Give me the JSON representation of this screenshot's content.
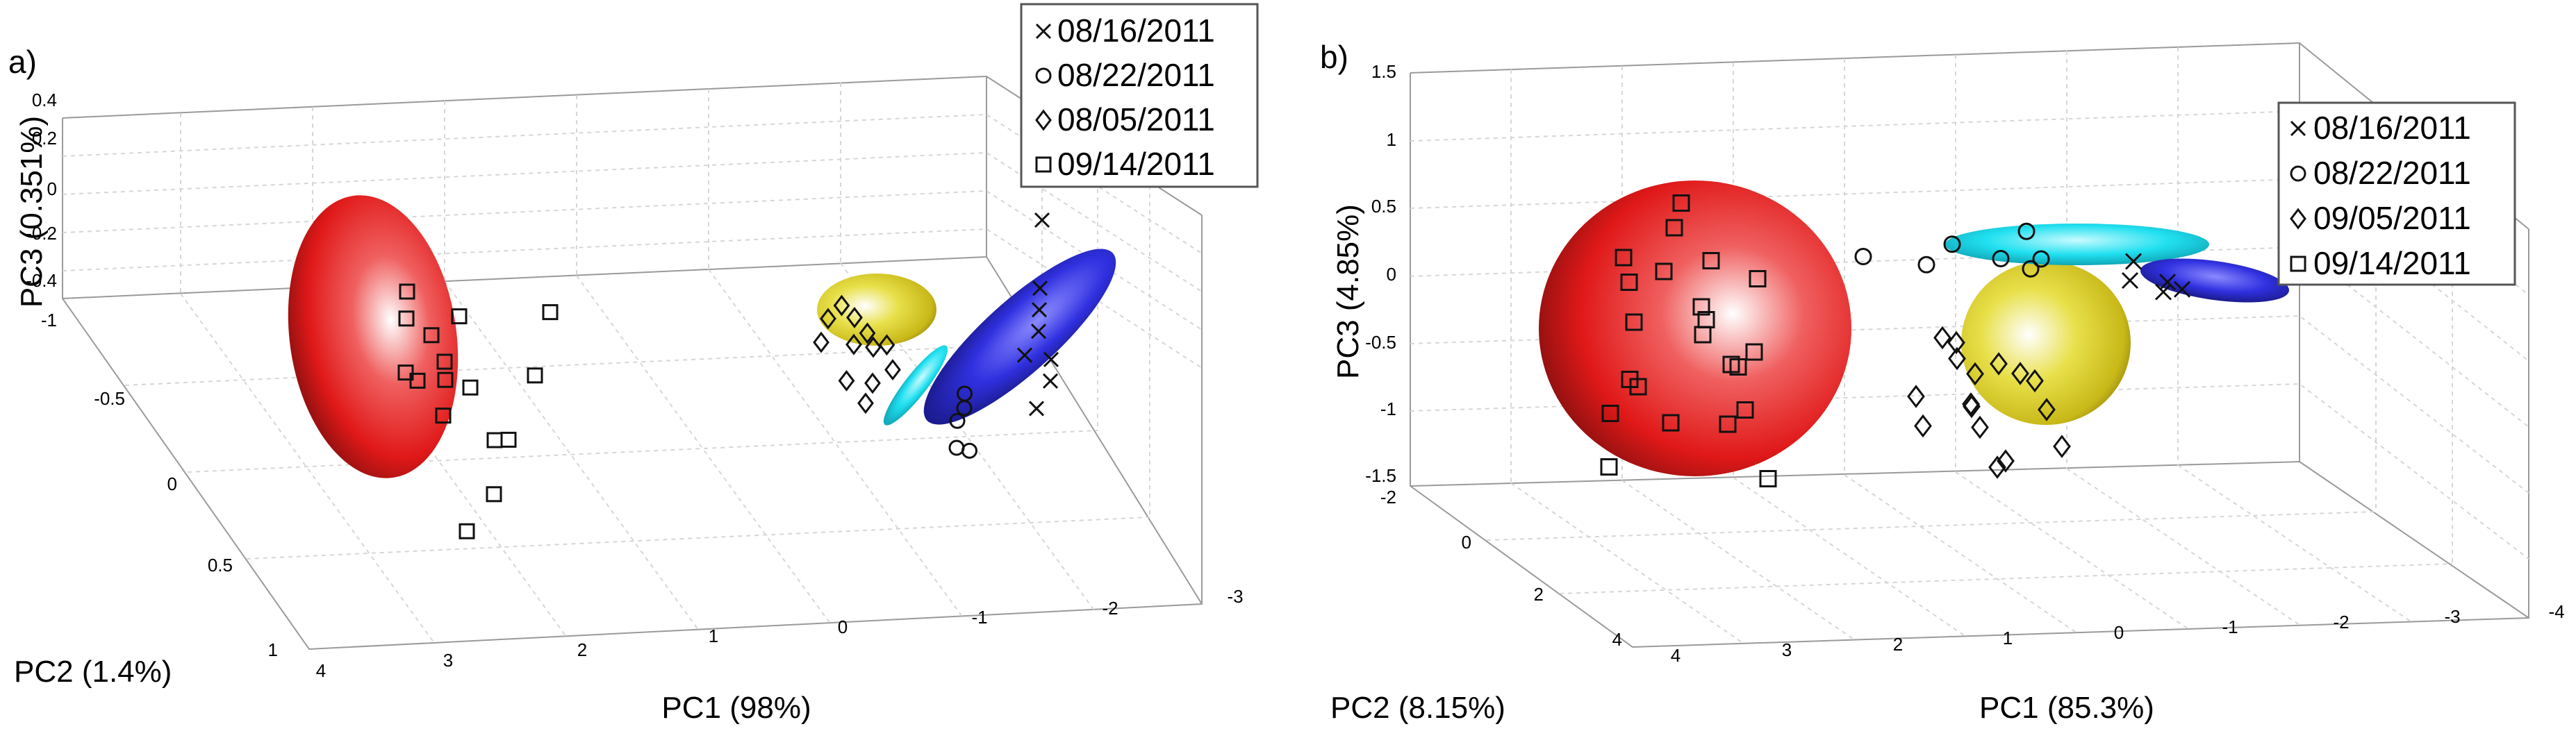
{
  "chart_data": [
    {
      "type": "scatter",
      "panel_label": "a)",
      "xlabel": "PC1 (98%)",
      "ylabel": "PC2 (1.4%)",
      "zlabel": "PC3 (0.351%)",
      "x_ticks": [
        "4",
        "3",
        "2",
        "1",
        "0",
        "-1",
        "-2",
        "-3"
      ],
      "y_ticks": [
        "-1",
        "-0.5",
        "0",
        "0.5",
        "1"
      ],
      "z_ticks": [
        "0.4",
        "0.2",
        "0",
        "-0.2",
        "-0.4"
      ],
      "legend": [
        "08/16/2011",
        "08/22/2011",
        "08/05/2011",
        "09/14/2011"
      ],
      "series": [
        {
          "name": "08/16/2011",
          "marker": "x",
          "ellipsoid_color": "#2a2ad6",
          "points": [
            [
              -1.3,
              0.1,
              0.05
            ],
            [
              -1.5,
              0.0,
              0.08
            ],
            [
              -1.6,
              -0.1,
              0.1
            ],
            [
              -1.4,
              0.2,
              0.0
            ],
            [
              -1.7,
              -0.2,
              0.12
            ],
            [
              -1.2,
              0.3,
              -0.05
            ],
            [
              -2.0,
              -0.5,
              0.2
            ],
            [
              -1.5,
              0.1,
              0.02
            ]
          ]
        },
        {
          "name": "08/22/2011",
          "marker": "o",
          "ellipsoid_color": "#22d6e6",
          "points": [
            [
              -0.6,
              0.3,
              -0.1
            ],
            [
              -0.7,
              0.25,
              -0.08
            ],
            [
              -0.5,
              0.4,
              -0.15
            ],
            [
              -0.55,
              0.45,
              -0.12
            ],
            [
              -0.75,
              0.2,
              -0.05
            ]
          ]
        },
        {
          "name": "08/05/2011",
          "marker": "d",
          "ellipsoid_color": "#d4c92a",
          "points": [
            [
              0.0,
              -0.1,
              0.1
            ],
            [
              -0.1,
              0.0,
              0.05
            ],
            [
              -0.2,
              0.05,
              0.08
            ],
            [
              0.1,
              -0.05,
              0.02
            ],
            [
              -0.3,
              0.1,
              0.0
            ],
            [
              -0.15,
              -0.15,
              0.12
            ],
            [
              0.05,
              0.1,
              -0.05
            ],
            [
              -0.25,
              -0.05,
              0.06
            ],
            [
              -0.1,
              0.15,
              -0.02
            ],
            [
              -0.35,
              0.0,
              0.04
            ],
            [
              0.0,
              0.2,
              -0.08
            ],
            [
              -0.2,
              -0.1,
              0.1
            ]
          ]
        },
        {
          "name": "09/14/2011",
          "marker": "s",
          "ellipsoid_color": "#e02020",
          "points": [
            [
              3.0,
              0.0,
              0.05
            ],
            [
              3.1,
              -0.2,
              0.1
            ],
            [
              2.9,
              0.1,
              0.0
            ],
            [
              3.2,
              0.2,
              -0.05
            ],
            [
              3.0,
              -0.3,
              0.15
            ],
            [
              2.8,
              0.3,
              -0.1
            ],
            [
              3.1,
              0.0,
              0.2
            ],
            [
              2.9,
              -0.1,
              -0.15
            ],
            [
              3.3,
              0.1,
              0.05
            ],
            [
              3.0,
              0.4,
              0.0
            ],
            [
              2.7,
              -0.2,
              0.1
            ],
            [
              3.2,
              -0.1,
              -0.1
            ],
            [
              2.6,
              0.3,
              0.25
            ],
            [
              3.1,
              0.5,
              -0.2
            ],
            [
              2.2,
              0.0,
              0.3
            ],
            [
              3.4,
              0.6,
              -0.3
            ]
          ]
        }
      ]
    },
    {
      "type": "scatter",
      "panel_label": "b)",
      "xlabel": "PC1 (85.3%)",
      "ylabel": "PC2 (8.15%)",
      "zlabel": "PC3 (4.85%)",
      "x_ticks": [
        "4",
        "3",
        "2",
        "1",
        "0",
        "-1",
        "-2",
        "-3",
        "-4"
      ],
      "y_ticks": [
        "-2",
        "0",
        "2",
        "4"
      ],
      "z_ticks": [
        "1.5",
        "1",
        "0.5",
        "0",
        "-0.5",
        "-1",
        "-1.5"
      ],
      "legend": [
        "08/16/2011",
        "08/22/2011",
        "09/05/2011",
        "09/14/2011"
      ],
      "series": [
        {
          "name": "08/16/2011",
          "marker": "x",
          "ellipsoid_color": "#2a2ad6",
          "points": [
            [
              -1.6,
              0.0,
              0.0
            ],
            [
              -1.8,
              0.2,
              0.05
            ],
            [
              -2.0,
              0.1,
              -0.05
            ],
            [
              -1.7,
              -0.1,
              0.1
            ],
            [
              -1.9,
              0.0,
              -0.1
            ]
          ]
        },
        {
          "name": "08/22/2011",
          "marker": "o",
          "ellipsoid_color": "#22d6e6",
          "points": [
            [
              0.8,
              0.0,
              0.3
            ],
            [
              0.3,
              0.1,
              0.25
            ],
            [
              0.0,
              0.0,
              0.35
            ],
            [
              -0.3,
              0.2,
              0.3
            ],
            [
              -0.6,
              0.1,
              0.45
            ],
            [
              -0.8,
              0.0,
              0.2
            ],
            [
              -0.5,
              0.3,
              0.25
            ]
          ]
        },
        {
          "name": "09/05/2011",
          "marker": "d",
          "ellipsoid_color": "#d4c92a",
          "points": [
            [
              0.3,
              0.5,
              -0.3
            ],
            [
              0.0,
              0.3,
              -0.5
            ],
            [
              -0.2,
              0.6,
              -0.4
            ],
            [
              0.1,
              0.4,
              -0.7
            ],
            [
              -0.3,
              0.8,
              -0.6
            ],
            [
              0.4,
              0.2,
              -0.9
            ],
            [
              0.2,
              0.9,
              -0.2
            ],
            [
              -0.1,
              0.1,
              -0.8
            ],
            [
              0.0,
              0.7,
              -1.0
            ],
            [
              -0.4,
              0.5,
              -0.5
            ],
            [
              0.5,
              0.6,
              -0.1
            ],
            [
              -0.2,
              0.3,
              -1.2
            ],
            [
              0.3,
              0.8,
              -0.7
            ],
            [
              0.1,
              0.2,
              -0.3
            ],
            [
              -0.3,
              1.0,
              -0.8
            ],
            [
              0.6,
              0.4,
              -0.6
            ]
          ]
        },
        {
          "name": "09/14/2011",
          "marker": "s",
          "ellipsoid_color": "#e02020",
          "points": [
            [
              2.5,
              0.0,
              0.6
            ],
            [
              2.8,
              0.3,
              0.4
            ],
            [
              2.3,
              -0.2,
              0.7
            ],
            [
              2.6,
              0.5,
              0.2
            ],
            [
              3.0,
              0.2,
              0.0
            ],
            [
              2.4,
              0.6,
              -0.2
            ],
            [
              2.7,
              -0.3,
              0.1
            ],
            [
              2.2,
              0.4,
              -0.3
            ],
            [
              2.9,
              0.0,
              -0.5
            ],
            [
              2.5,
              0.7,
              -0.6
            ],
            [
              2.1,
              -0.1,
              0.3
            ],
            [
              3.1,
              0.4,
              -0.4
            ],
            [
              2.6,
              0.1,
              -0.8
            ],
            [
              2.3,
              0.8,
              0.5
            ],
            [
              2.0,
              0.2,
              -0.7
            ],
            [
              2.8,
              -0.4,
              -0.9
            ],
            [
              3.3,
              0.5,
              0.6
            ],
            [
              2.4,
              0.9,
              0.0
            ],
            [
              2.0,
              0.5,
              -1.1
            ],
            [
              3.5,
              0.6,
              -0.9
            ],
            [
              2.9,
              1.0,
              0.3
            ],
            [
              1.9,
              -0.5,
              -0.4
            ]
          ]
        }
      ]
    }
  ]
}
